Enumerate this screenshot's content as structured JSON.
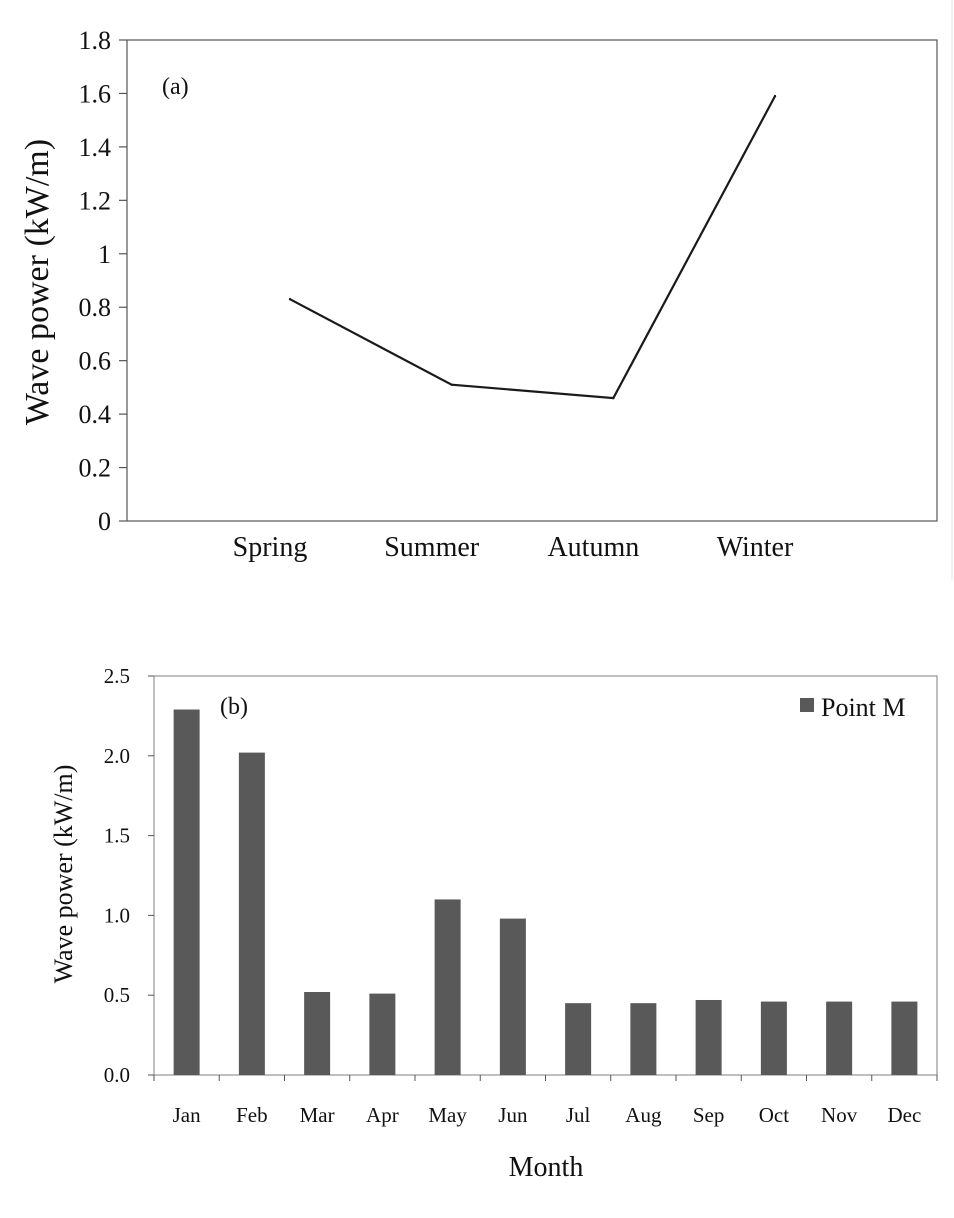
{
  "chart_data": [
    {
      "type": "line",
      "panel_label": "(a)",
      "ylabel": "Wave power (kW/m)",
      "xlabel": "",
      "categories": [
        "Spring",
        "Summer",
        "Autumn",
        "Winter"
      ],
      "series": [
        {
          "values": [
            0.83,
            0.51,
            0.46,
            1.59
          ]
        }
      ],
      "ylim": [
        0,
        1.8
      ],
      "yticks": [
        "0",
        "0.2",
        "0.4",
        "0.6",
        "0.8",
        "1",
        "1.2",
        "1.4",
        "1.6",
        "1.8"
      ],
      "grid": false,
      "colors": {
        "line": "#1a1a1a",
        "axis": "#555555"
      }
    },
    {
      "type": "bar",
      "panel_label": "(b)",
      "ylabel": "Wave power (kW/m)",
      "xlabel": "Month",
      "categories": [
        "Jan",
        "Feb",
        "Mar",
        "Apr",
        "May",
        "Jun",
        "Jul",
        "Aug",
        "Sep",
        "Oct",
        "Nov",
        "Dec"
      ],
      "series": [
        {
          "name": "Point M",
          "values": [
            2.29,
            2.02,
            0.52,
            0.51,
            1.1,
            0.98,
            0.45,
            0.45,
            0.47,
            0.46,
            0.46,
            0.46
          ]
        }
      ],
      "ylim": [
        0,
        2.5
      ],
      "yticks": [
        "0.0",
        "0.5",
        "1.0",
        "1.5",
        "2.0",
        "2.5"
      ],
      "grid": false,
      "legend": "top-right",
      "colors": {
        "bar": "#595959",
        "axis": "#555555"
      }
    }
  ]
}
